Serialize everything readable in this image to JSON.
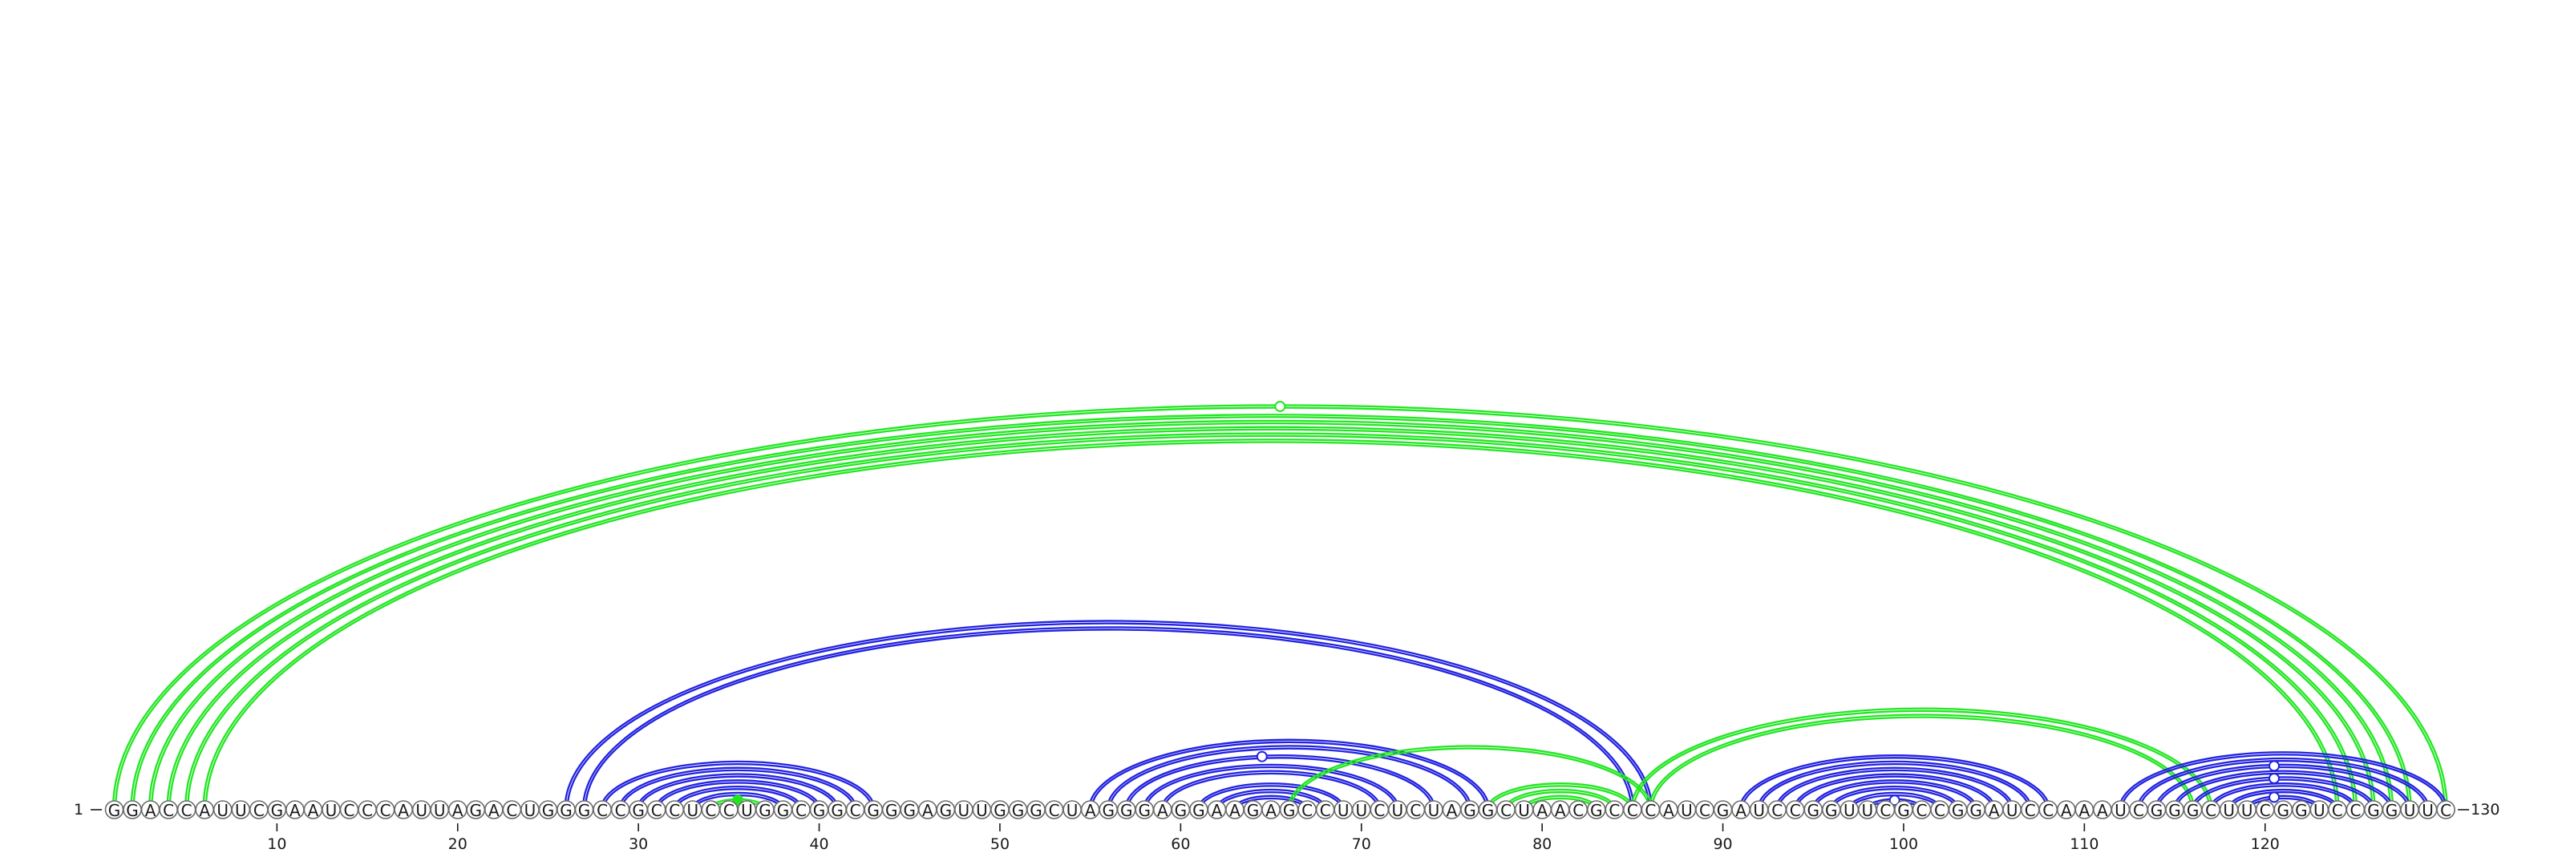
{
  "chart_data": {
    "type": "arc-diagram",
    "title": "",
    "sequence": "GGACCAUUCGAAUCCCAUUAGACUGGGCCGCCUCCUGGCGGCGGGAGUUGGGCUAGGGAGGAAGAGCCUUCUCUAGGCUAACGCCCAUCGAUCCGGUUCGCCGGAUCCAAAUCGGGCUUCGGUCCGGUUC",
    "length": 130,
    "start_label": "1",
    "end_label": "130",
    "tick_labels": [
      "10",
      "20",
      "30",
      "40",
      "50",
      "60",
      "70",
      "80",
      "90",
      "100",
      "110",
      "120"
    ],
    "colors": {
      "green": "#22e622",
      "blue": "#2222e0"
    },
    "arcs": [
      {
        "i": 1,
        "j": 130,
        "color": "green",
        "lines": 2
      },
      {
        "i": 2,
        "j": 128,
        "color": "green",
        "lines": 2
      },
      {
        "i": 3,
        "j": 127,
        "color": "green",
        "lines": 2
      },
      {
        "i": 4,
        "j": 126,
        "color": "green",
        "lines": 2
      },
      {
        "i": 5,
        "j": 125,
        "color": "green",
        "lines": 2
      },
      {
        "i": 6,
        "j": 124,
        "color": "green",
        "lines": 2
      },
      {
        "i": 26,
        "j": 86,
        "color": "blue",
        "lines": 2
      },
      {
        "i": 27,
        "j": 85,
        "color": "blue",
        "lines": 2
      },
      {
        "i": 28,
        "j": 43,
        "color": "blue",
        "lines": 2
      },
      {
        "i": 29,
        "j": 42,
        "color": "blue",
        "lines": 2
      },
      {
        "i": 30,
        "j": 41,
        "color": "blue",
        "lines": 2
      },
      {
        "i": 31,
        "j": 40,
        "color": "blue",
        "lines": 2
      },
      {
        "i": 32,
        "j": 39,
        "color": "blue",
        "lines": 2
      },
      {
        "i": 33,
        "j": 38,
        "color": "blue",
        "lines": 2
      },
      {
        "i": 34,
        "j": 37,
        "color": "green",
        "lines": 2
      },
      {
        "i": 55,
        "j": 77,
        "color": "blue",
        "lines": 2
      },
      {
        "i": 56,
        "j": 76,
        "color": "blue",
        "lines": 2
      },
      {
        "i": 57,
        "j": 74,
        "color": "blue",
        "lines": 2
      },
      {
        "i": 58,
        "j": 72,
        "color": "blue",
        "lines": 2
      },
      {
        "i": 59,
        "j": 71,
        "color": "blue",
        "lines": 2
      },
      {
        "i": 61,
        "j": 69,
        "color": "blue",
        "lines": 2
      },
      {
        "i": 62,
        "j": 68,
        "color": "blue",
        "lines": 2
      },
      {
        "i": 63,
        "j": 67,
        "color": "blue",
        "lines": 2
      },
      {
        "i": 66,
        "j": 86,
        "color": "green",
        "lines": 2
      },
      {
        "i": 77,
        "j": 85,
        "color": "green",
        "lines": 2
      },
      {
        "i": 78,
        "j": 84,
        "color": "green",
        "lines": 2
      },
      {
        "i": 79,
        "j": 83,
        "color": "green",
        "lines": 2
      },
      {
        "i": 85,
        "j": 117,
        "color": "green",
        "lines": 2
      },
      {
        "i": 86,
        "j": 116,
        "color": "green",
        "lines": 2
      },
      {
        "i": 91,
        "j": 108,
        "color": "blue",
        "lines": 2
      },
      {
        "i": 92,
        "j": 107,
        "color": "blue",
        "lines": 2
      },
      {
        "i": 93,
        "j": 106,
        "color": "blue",
        "lines": 2
      },
      {
        "i": 94,
        "j": 105,
        "color": "blue",
        "lines": 2
      },
      {
        "i": 95,
        "j": 104,
        "color": "blue",
        "lines": 2
      },
      {
        "i": 96,
        "j": 103,
        "color": "blue",
        "lines": 2
      },
      {
        "i": 97,
        "j": 102,
        "color": "blue",
        "lines": 2
      },
      {
        "i": 98,
        "j": 101,
        "color": "blue",
        "lines": 2
      },
      {
        "i": 112,
        "j": 130,
        "color": "blue",
        "lines": 2
      },
      {
        "i": 113,
        "j": 129,
        "color": "blue",
        "lines": 2
      },
      {
        "i": 114,
        "j": 128,
        "color": "blue",
        "lines": 2
      },
      {
        "i": 115,
        "j": 127,
        "color": "blue",
        "lines": 2
      },
      {
        "i": 116,
        "j": 126,
        "color": "blue",
        "lines": 2
      },
      {
        "i": 117,
        "j": 125,
        "color": "blue",
        "lines": 2
      },
      {
        "i": 118,
        "j": 124,
        "color": "blue",
        "lines": 2
      },
      {
        "i": 119,
        "j": 123,
        "color": "blue",
        "lines": 2
      }
    ],
    "markers": [
      {
        "pos": 65.5,
        "arc_i": 1,
        "arc_j": 130,
        "color": "green",
        "filled": false
      },
      {
        "pos": 35.5,
        "arc_i": 34,
        "arc_j": 37,
        "color": "green",
        "filled": true
      },
      {
        "pos": 64.5,
        "arc_i": 57,
        "arc_j": 74,
        "color": "blue",
        "filled": false
      },
      {
        "pos": 99.5,
        "arc_i": 98,
        "arc_j": 101,
        "color": "blue",
        "filled": false
      },
      {
        "pos": 120.5,
        "arc_i": 114,
        "arc_j": 128,
        "color": "blue",
        "filled": false
      },
      {
        "pos": 120.5,
        "arc_i": 116,
        "arc_j": 126,
        "color": "blue",
        "filled": false
      },
      {
        "pos": 120.5,
        "arc_i": 119,
        "arc_j": 123,
        "color": "blue",
        "filled": false
      }
    ]
  }
}
